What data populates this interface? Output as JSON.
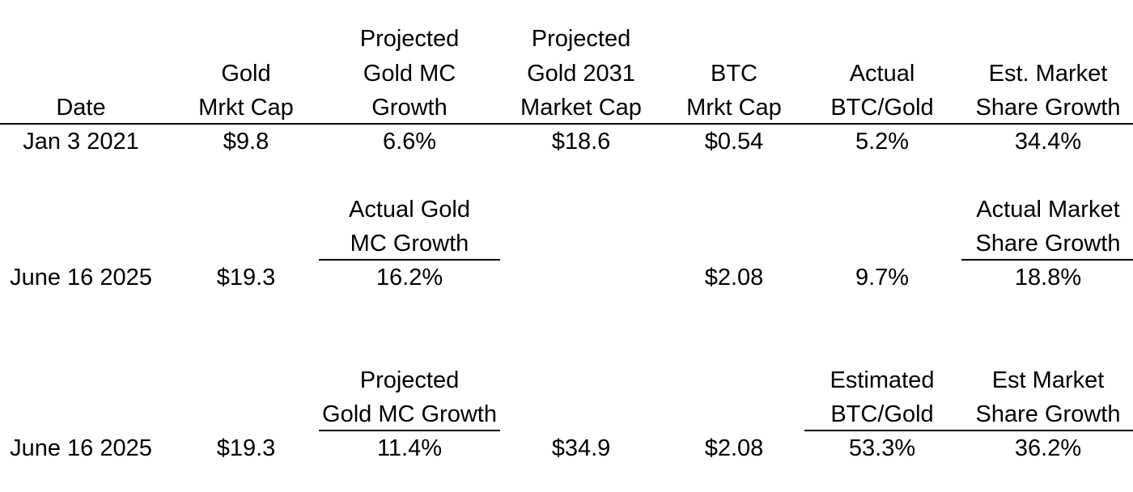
{
  "header": {
    "date": "Date",
    "gold_mc": [
      "Gold",
      "Mrkt Cap"
    ],
    "proj_growth": [
      "Projected",
      "Gold MC",
      "Growth"
    ],
    "proj_2031": [
      "Projected",
      "Gold 2031",
      "Market Cap"
    ],
    "btc_mc": [
      "BTC",
      "Mrkt Cap"
    ],
    "actual_ratio": [
      "Actual",
      "BTC/Gold"
    ],
    "est_share": [
      "Est. Market",
      "Share Growth"
    ]
  },
  "row1": {
    "date": "Jan 3 2021",
    "gold_mc": "$9.8",
    "proj_growth": "6.6%",
    "proj_2031": "$18.6",
    "btc_mc": "$0.54",
    "ratio": "5.2%",
    "share_growth": "34.4%"
  },
  "row2": {
    "growth_label": [
      "Actual Gold",
      "MC Growth"
    ],
    "share_label": [
      "Actual Market",
      "Share Growth"
    ],
    "date": "June 16 2025",
    "gold_mc": "$19.3",
    "growth": "16.2%",
    "btc_mc": "$2.08",
    "ratio": "9.7%",
    "share_growth": "18.8%"
  },
  "row3": {
    "growth_label": [
      "Projected",
      "Gold MC Growth"
    ],
    "ratio_label": [
      "Estimated",
      "BTC/Gold"
    ],
    "share_label": [
      "Est Market",
      "Share Growth"
    ],
    "date": "June 16 2025",
    "gold_mc": "$19.3",
    "growth": "11.4%",
    "proj_mc": "$34.9",
    "btc_mc": "$2.08",
    "ratio": "53.3%",
    "share_growth": "36.2%"
  }
}
